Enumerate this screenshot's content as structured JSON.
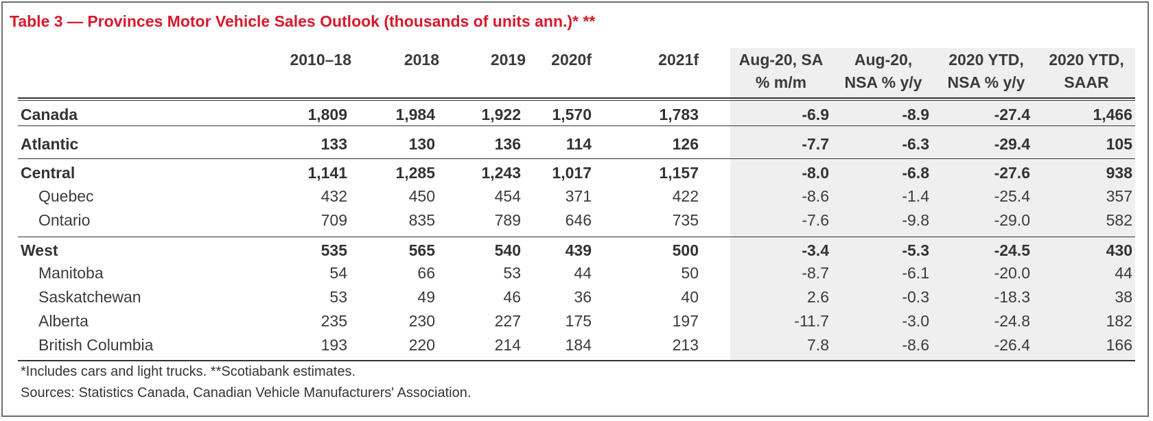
{
  "title": "Table 3 — Provinces Motor Vehicle Sales Outlook (thousands of units ann.)* **",
  "columns": [
    {
      "line1": "2010–18",
      "line2": ""
    },
    {
      "line1": "2018",
      "line2": ""
    },
    {
      "line1": "2019",
      "line2": ""
    },
    {
      "line1": "2020f",
      "line2": ""
    },
    {
      "line1": "2021f",
      "line2": ""
    },
    {
      "line1": "Aug-20, SA",
      "line2": "% m/m"
    },
    {
      "line1": "Aug-20,",
      "line2": "NSA % y/y"
    },
    {
      "line1": "2020 YTD,",
      "line2": "NSA % y/y"
    },
    {
      "line1": "2020 YTD,",
      "line2": "SAAR"
    }
  ],
  "rows": [
    {
      "label": "Canada",
      "values": [
        "1,809",
        "1,984",
        "1,922",
        "1,570",
        "1,783",
        "-6.9",
        "-8.9",
        "-27.4",
        "1,466"
      ]
    },
    {
      "label": "Atlantic",
      "values": [
        "133",
        "130",
        "136",
        "114",
        "126",
        "-7.7",
        "-6.3",
        "-29.4",
        "105"
      ]
    },
    {
      "label": "Central",
      "values": [
        "1,141",
        "1,285",
        "1,243",
        "1,017",
        "1,157",
        "-8.0",
        "-6.8",
        "-27.6",
        "938"
      ]
    },
    {
      "label": "Quebec",
      "values": [
        "432",
        "450",
        "454",
        "371",
        "422",
        "-8.6",
        "-1.4",
        "-25.4",
        "357"
      ]
    },
    {
      "label": "Ontario",
      "values": [
        "709",
        "835",
        "789",
        "646",
        "735",
        "-7.6",
        "-9.8",
        "-29.0",
        "582"
      ]
    },
    {
      "label": "West",
      "values": [
        "535",
        "565",
        "540",
        "439",
        "500",
        "-3.4",
        "-5.3",
        "-24.5",
        "430"
      ]
    },
    {
      "label": "Manitoba",
      "values": [
        "54",
        "66",
        "53",
        "44",
        "50",
        "-8.7",
        "-6.1",
        "-20.0",
        "44"
      ]
    },
    {
      "label": "Saskatchewan",
      "values": [
        "53",
        "49",
        "46",
        "36",
        "40",
        "2.6",
        "-0.3",
        "-18.3",
        "38"
      ]
    },
    {
      "label": "Alberta",
      "values": [
        "235",
        "230",
        "227",
        "175",
        "197",
        "-11.7",
        "-3.0",
        "-24.8",
        "182"
      ]
    },
    {
      "label": "British Columbia",
      "values": [
        "193",
        "220",
        "214",
        "184",
        "213",
        "7.8",
        "-8.6",
        "-26.4",
        "166"
      ]
    }
  ],
  "notes": [
    "*Includes cars and light trucks. **Scotiabank estimates.",
    "Sources: Statistics Canada, Canadian Vehicle Manufacturers' Association."
  ]
}
